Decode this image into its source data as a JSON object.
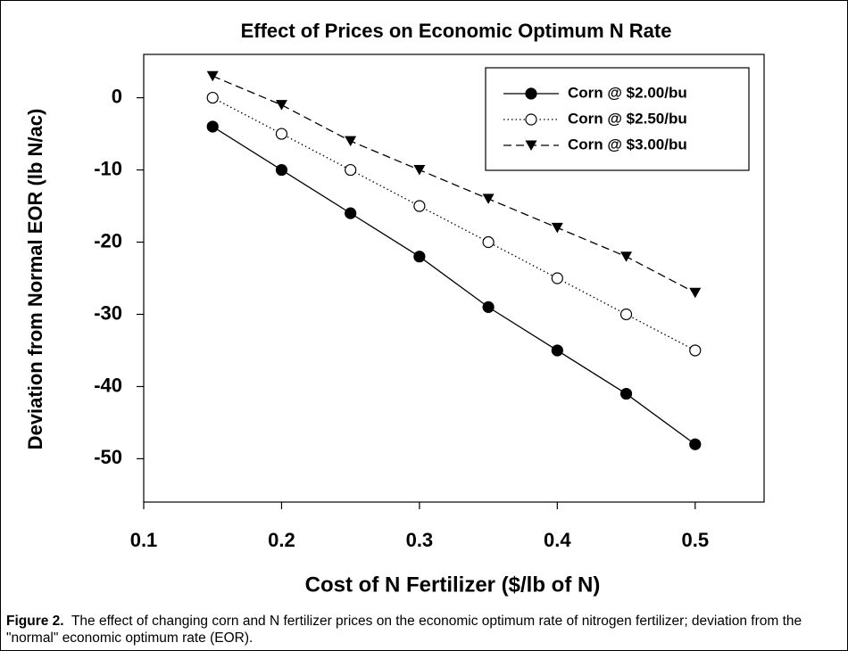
{
  "chart_data": {
    "type": "line",
    "title": "Effect of Prices on Economic Optimum N Rate",
    "x_label": "Cost of N Fertilizer ($/lb of N)",
    "y_label": "Deviation from Normal EOR (lb N/ac)",
    "x": [
      0.15,
      0.2,
      0.25,
      0.3,
      0.35,
      0.4,
      0.45,
      0.5
    ],
    "series": [
      {
        "name": "Corn @ $2.00/bu",
        "color": "#000000",
        "marker": "circle-filled",
        "dash": "solid",
        "values": [
          -4,
          -10,
          -16,
          -22,
          -29,
          -35,
          -41,
          -48
        ]
      },
      {
        "name": "Corn @ $2.50/bu",
        "color": "#000000",
        "marker": "circle-open",
        "dash": "dotted",
        "values": [
          0,
          -5,
          -10,
          -15,
          -20,
          -25,
          -30,
          -35
        ]
      },
      {
        "name": "Corn @ $3.00/bu",
        "color": "#000000",
        "marker": "triangle-down",
        "dash": "dashed",
        "values": [
          3,
          -1,
          -6,
          -10,
          -14,
          -18,
          -22,
          -27
        ]
      }
    ],
    "xlim": [
      0.1,
      0.55
    ],
    "xticks": [
      0.1,
      0.2,
      0.3,
      0.4,
      0.5
    ],
    "ylim": [
      -56,
      6
    ],
    "yticks": [
      0,
      -10,
      -20,
      -30,
      -40,
      -50
    ],
    "legend": "upper right",
    "grid": false
  },
  "caption": {
    "label": "Figure 2.",
    "text": "The effect of changing corn and N fertilizer prices on the economic optimum rate of nitrogen fertilizer; deviation from the \"normal\" economic optimum rate (EOR)."
  }
}
